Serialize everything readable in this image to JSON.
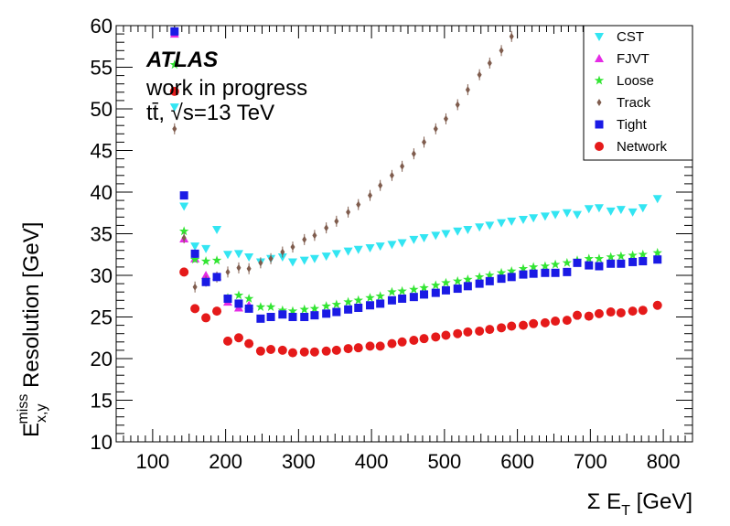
{
  "chart_data": {
    "type": "scatter",
    "title": "",
    "xlabel": "Σ E_T [GeV]",
    "ylabel": "E_{x,y}^{miss} Resolution [GeV]",
    "xlim": [
      50,
      840
    ],
    "ylim": [
      10,
      60
    ],
    "xticks": [
      100,
      200,
      300,
      400,
      500,
      600,
      700,
      800
    ],
    "yticks": [
      10,
      15,
      20,
      25,
      30,
      35,
      40,
      45,
      50,
      55,
      60
    ],
    "grid": false,
    "legend_position": "top-right",
    "annotations": {
      "atlas": "ATLAS",
      "status": "work in progress",
      "process": "tt̄, √s=13 TeV"
    },
    "series": [
      {
        "name": "CST",
        "color": "#33e5f2",
        "marker": "triangle-down",
        "x": [
          130,
          143,
          158,
          173,
          188,
          203,
          218,
          232,
          248,
          262,
          278,
          292,
          308,
          322,
          338,
          352,
          368,
          382,
          398,
          412,
          428,
          442,
          458,
          472,
          488,
          502,
          518,
          532,
          548,
          562,
          578,
          592,
          608,
          622,
          638,
          652,
          668,
          682,
          698,
          712,
          728,
          742,
          758,
          772,
          792
        ],
        "y": [
          50.2,
          38.3,
          33.5,
          33.2,
          35.5,
          32.5,
          32.6,
          32.2,
          31.6,
          32.0,
          32.2,
          31.6,
          31.8,
          32.0,
          32.3,
          32.6,
          32.9,
          33.1,
          33.3,
          33.5,
          33.7,
          33.9,
          34.3,
          34.5,
          34.8,
          35.0,
          35.3,
          35.5,
          35.8,
          36.0,
          36.3,
          36.5,
          36.7,
          36.9,
          37.1,
          37.3,
          37.5,
          37.3,
          38.0,
          38.1,
          37.7,
          37.9,
          37.6,
          38.1,
          39.2
        ]
      },
      {
        "name": "FJVT",
        "color": "#e52be5",
        "marker": "triangle-up",
        "x": [
          130,
          143,
          158,
          173,
          188,
          203,
          218,
          232
        ],
        "y": [
          59.0,
          34.4,
          32.0,
          30.0,
          29.9,
          26.8,
          26.1,
          26.4
        ]
      },
      {
        "name": "Loose",
        "color": "#33e533",
        "marker": "star",
        "x": [
          130,
          143,
          158,
          173,
          188,
          203,
          218,
          232,
          248,
          262,
          278,
          292,
          308,
          322,
          338,
          352,
          368,
          382,
          398,
          412,
          428,
          442,
          458,
          472,
          488,
          502,
          518,
          532,
          548,
          562,
          578,
          592,
          608,
          622,
          638,
          652,
          668,
          682,
          698,
          712,
          728,
          742,
          758,
          772,
          792
        ],
        "y": [
          55.3,
          35.3,
          31.9,
          31.7,
          31.8,
          27.3,
          27.6,
          27.2,
          26.2,
          26.2,
          25.8,
          25.7,
          25.9,
          26.0,
          26.3,
          26.5,
          26.8,
          27.0,
          27.3,
          27.5,
          28.0,
          28.1,
          28.3,
          28.5,
          28.8,
          29.1,
          29.3,
          29.5,
          29.8,
          30.0,
          30.3,
          30.5,
          30.8,
          31.0,
          31.1,
          31.3,
          31.5,
          31.8,
          32.0,
          32.0,
          32.2,
          32.3,
          32.4,
          32.5,
          32.7
        ]
      },
      {
        "name": "Track",
        "color": "#7f5c4d",
        "marker": "diamond",
        "x": [
          130,
          143,
          158,
          173,
          188,
          203,
          218,
          232,
          248,
          262,
          278,
          292,
          308,
          322,
          338,
          352,
          368,
          382,
          398,
          412,
          428,
          442,
          458,
          472,
          488,
          502,
          518,
          532,
          548,
          562,
          578,
          592,
          608
        ],
        "y": [
          47.6,
          34.5,
          28.6,
          29.3,
          29.8,
          30.4,
          30.9,
          30.8,
          31.5,
          32.0,
          32.8,
          33.4,
          34.3,
          34.8,
          35.7,
          36.5,
          37.6,
          38.5,
          39.6,
          40.8,
          42.0,
          43.1,
          44.6,
          46.0,
          47.6,
          48.8,
          50.5,
          52.3,
          54.1,
          55.5,
          57.0,
          58.7,
          60.2
        ]
      },
      {
        "name": "Tight",
        "color": "#1a1ae5",
        "marker": "square",
        "x": [
          130,
          143,
          158,
          173,
          188,
          203,
          218,
          232,
          248,
          262,
          278,
          292,
          308,
          322,
          338,
          352,
          368,
          382,
          398,
          412,
          428,
          442,
          458,
          472,
          488,
          502,
          518,
          532,
          548,
          562,
          578,
          592,
          608,
          622,
          638,
          652,
          668,
          682,
          698,
          712,
          728,
          742,
          758,
          772,
          792
        ],
        "y": [
          59.3,
          39.6,
          32.6,
          29.2,
          29.8,
          27.2,
          26.6,
          26.0,
          24.8,
          25.0,
          25.3,
          25.0,
          25.0,
          25.2,
          25.4,
          25.6,
          25.9,
          26.1,
          26.4,
          26.6,
          27.0,
          27.2,
          27.4,
          27.7,
          27.9,
          28.2,
          28.4,
          28.7,
          29.0,
          29.3,
          29.6,
          29.8,
          30.1,
          30.2,
          30.3,
          30.3,
          30.4,
          31.5,
          31.2,
          31.1,
          31.4,
          31.4,
          31.6,
          31.7,
          31.9
        ]
      },
      {
        "name": "Network",
        "color": "#e51a1a",
        "marker": "circle",
        "x": [
          130,
          143,
          158,
          173,
          188,
          203,
          218,
          232,
          248,
          262,
          278,
          292,
          308,
          322,
          338,
          352,
          368,
          382,
          398,
          412,
          428,
          442,
          458,
          472,
          488,
          502,
          518,
          532,
          548,
          562,
          578,
          592,
          608,
          622,
          638,
          652,
          668,
          682,
          698,
          712,
          728,
          742,
          758,
          772,
          792
        ],
        "y": [
          52.1,
          30.4,
          26.0,
          24.9,
          25.7,
          22.1,
          22.5,
          21.8,
          20.9,
          21.1,
          21.0,
          20.7,
          20.8,
          20.8,
          20.9,
          21.0,
          21.2,
          21.3,
          21.5,
          21.5,
          21.8,
          22.0,
          22.2,
          22.4,
          22.6,
          22.8,
          23.0,
          23.2,
          23.3,
          23.5,
          23.7,
          23.9,
          24.0,
          24.2,
          24.3,
          24.5,
          24.6,
          25.2,
          25.1,
          25.4,
          25.6,
          25.5,
          25.7,
          25.8,
          26.4
        ]
      }
    ]
  }
}
